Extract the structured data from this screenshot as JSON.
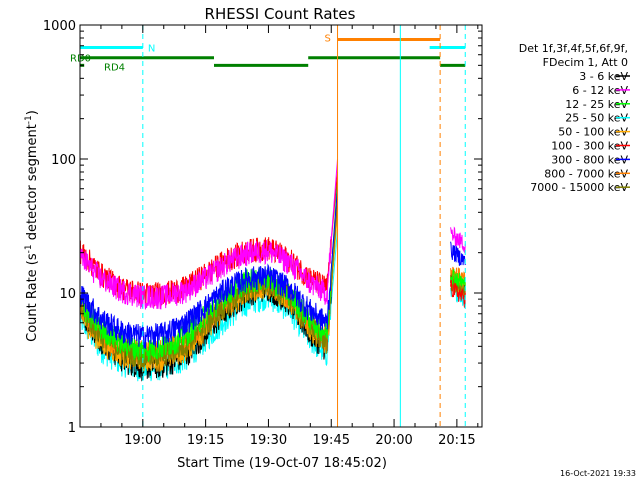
{
  "chart_data": {
    "type": "line",
    "title": "RHESSI Count Rates",
    "xlabel": "Start Time (19-Oct-07 18:45:02)",
    "ylabel_main": "Count Rate (s",
    "ylabel_sup1": "-1",
    "ylabel_mid": " detector segment",
    "ylabel_sup2": "-1",
    "ylabel_end": ")",
    "y_scale": "log",
    "ylim": [
      1,
      1000
    ],
    "xlim_minutes": [
      0,
      96
    ],
    "x_ticks": [
      {
        "label": "19:00",
        "minute": 15
      },
      {
        "label": "19:15",
        "minute": 30
      },
      {
        "label": "19:30",
        "minute": 45
      },
      {
        "label": "19:45",
        "minute": 60
      },
      {
        "label": "20:00",
        "minute": 75
      },
      {
        "label": "20:15",
        "minute": 90
      }
    ],
    "y_ticks": [
      {
        "label": "1",
        "value": 1
      },
      {
        "label": "10",
        "value": 10
      },
      {
        "label": "100",
        "value": 100
      },
      {
        "label": "1000",
        "value": 1000
      }
    ],
    "legend": {
      "header1": "Det 1f,3f,4f,5f,6f,9f,",
      "header2": "FDecim 1, Att 0",
      "placement": "right"
    },
    "series": [
      {
        "name": "3 - 6 keV",
        "color": "#000000",
        "x": [
          0,
          5,
          10,
          15,
          20,
          25,
          30,
          35,
          40,
          45,
          50,
          55,
          59,
          61.5
        ],
        "y": [
          7.5,
          4.5,
          3.2,
          2.8,
          2.9,
          3.4,
          5,
          7.5,
          10,
          11,
          8.5,
          5,
          3.8,
          45
        ]
      },
      {
        "name": "6 - 12 keV",
        "color": "#ff00ff",
        "x": [
          0,
          5,
          10,
          15,
          20,
          25,
          30,
          35,
          40,
          45,
          50,
          55,
          59,
          61.5
        ],
        "y": [
          19,
          13,
          10.5,
          9.5,
          9.5,
          10.5,
          13,
          17,
          20,
          21,
          17,
          12,
          10,
          100
        ]
      },
      {
        "name": "12 - 25 keV",
        "color": "#00ff00",
        "x": [
          0,
          5,
          10,
          15,
          20,
          25,
          30,
          35,
          40,
          45,
          50,
          55,
          59,
          61.5
        ],
        "y": [
          8.5,
          5.5,
          4.3,
          3.8,
          4,
          4.8,
          7,
          10,
          12.5,
          13,
          10,
          6.5,
          5,
          70
        ]
      },
      {
        "name": "25 - 50 keV",
        "color": "#00ffff",
        "x": [
          0,
          5,
          10,
          15,
          20,
          25,
          30,
          35,
          40,
          45,
          50,
          55,
          59,
          61.5
        ],
        "y": [
          6.5,
          3.8,
          3,
          2.7,
          2.8,
          3.2,
          4.5,
          6.5,
          8.5,
          9.5,
          7.5,
          4.5,
          3.5,
          30
        ]
      },
      {
        "name": "50 - 100 keV",
        "color": "#ffaa00",
        "x": [
          0,
          5,
          10,
          15,
          20,
          25,
          30,
          35,
          40,
          45,
          50,
          55,
          59,
          61.5
        ],
        "y": [
          7,
          4.3,
          3.5,
          3.2,
          3.3,
          3.8,
          5.5,
          8,
          10.5,
          11.5,
          9,
          5.5,
          4.2,
          40
        ]
      },
      {
        "name": "100 - 300 keV",
        "color": "#ff0000",
        "x": [
          0,
          5,
          10,
          15,
          20,
          25,
          30,
          35,
          40,
          45,
          50,
          55,
          59,
          61.5
        ],
        "y": [
          21,
          14,
          11,
          10,
          10,
          11,
          14,
          18,
          21,
          22,
          18,
          13,
          11,
          80
        ]
      },
      {
        "name": "300 - 800 keV",
        "color": "#0000ff",
        "x": [
          0,
          5,
          10,
          15,
          20,
          25,
          30,
          35,
          40,
          45,
          50,
          55,
          59,
          61.5
        ],
        "y": [
          10,
          6.5,
          5.2,
          4.8,
          5,
          6,
          8,
          11,
          13,
          13.5,
          11,
          7.5,
          6,
          60
        ]
      },
      {
        "name": "800 - 7000 keV",
        "color": "#ff8000",
        "x": [
          0,
          5,
          10,
          15,
          20,
          25,
          30,
          35,
          40,
          45,
          50,
          55,
          59,
          61.5
        ],
        "y": [
          8,
          5,
          4,
          3.6,
          3.7,
          4.3,
          6,
          8.5,
          11,
          12,
          9.5,
          6,
          4.5,
          50
        ]
      },
      {
        "name": "7000 - 15000 keV",
        "color": "#808000",
        "x": [
          0,
          5,
          10,
          15,
          20,
          25,
          30,
          35,
          40,
          45,
          50,
          55,
          59,
          61.5
        ],
        "y": [
          7.8,
          4.8,
          3.8,
          3.4,
          3.5,
          4.1,
          5.8,
          8.3,
          10.8,
          11.8,
          9.3,
          5.8,
          4.3,
          48
        ]
      }
    ],
    "tail_segment": {
      "x_start": 88.5,
      "x_end": 92,
      "values": [
        13,
        28,
        14,
        11,
        13,
        11,
        21,
        15,
        12
      ]
    },
    "flag_bars": [
      {
        "label": "N",
        "color": "#00ffff",
        "y": 680,
        "segments": [
          [
            0,
            15
          ],
          [
            83.5,
            92
          ]
        ]
      },
      {
        "label": "S",
        "color": "#ff8000",
        "y": 780,
        "segments": [
          [
            61.5,
            86
          ]
        ]
      },
      {
        "label": "RD0",
        "color": "#008000",
        "y": 570,
        "segments": [
          [
            0,
            32
          ],
          [
            54.5,
            86
          ]
        ]
      },
      {
        "label": "RD4",
        "color": "#008000",
        "y": 500,
        "segments": [
          [
            0,
            1
          ],
          [
            32,
            54.5
          ],
          [
            86,
            92
          ]
        ]
      }
    ],
    "vertical_lines": [
      {
        "minute": 0,
        "color": "#00ffff",
        "dashed": false
      },
      {
        "minute": 15,
        "color": "#00ffff",
        "dashed": true
      },
      {
        "minute": 61.5,
        "color": "#ff8000",
        "dashed": false
      },
      {
        "minute": 76.5,
        "color": "#00ffff",
        "dashed": false
      },
      {
        "minute": 86,
        "color": "#ff8000",
        "dashed": true
      },
      {
        "minute": 92,
        "color": "#00ffff",
        "dashed": true
      }
    ],
    "grid": false
  },
  "footer": {
    "timestamp": "16-Oct-2021 19:33"
  }
}
